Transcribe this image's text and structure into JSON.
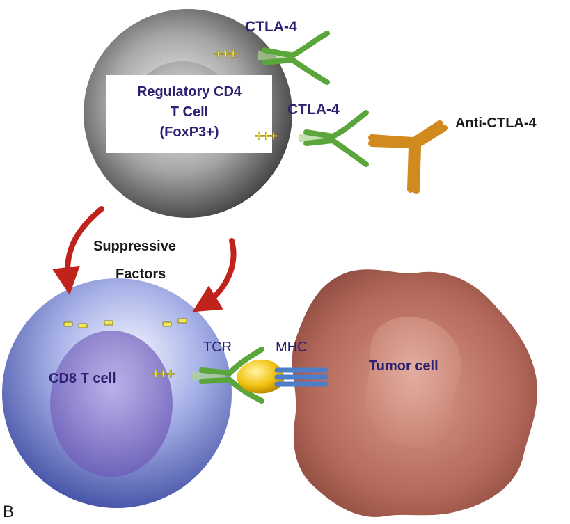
{
  "labels": {
    "ctla4_top": "CTLA-4",
    "ctla4_mid": "CTLA-4",
    "anti_ctla4": "Anti-CTLA-4",
    "treg_line1": "Regulatory CD4",
    "treg_line2": "T Cell",
    "treg_line3": "(FoxP3+)",
    "suppressive": "Suppressive",
    "factors": "Factors",
    "tcr": "TCR",
    "mhc": "MHC",
    "cd8": "CD8 T cell",
    "tumor": "Tumor cell",
    "panel": "B",
    "plus_sign": "+++"
  },
  "colors": {
    "text_navy": "#2b2170",
    "receptor_green": "#5aa63a",
    "antibody_orange": "#d08a1e",
    "arrow_red": "#c0231c",
    "charge_yellow": "#f2e65a",
    "antigen_gold": "#f1c20e",
    "mhc_blue": "#4d7ec8"
  }
}
